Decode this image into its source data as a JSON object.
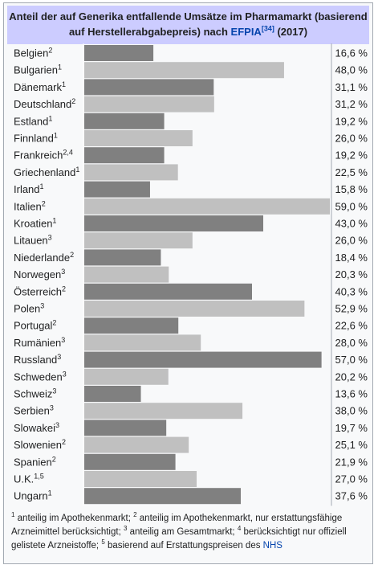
{
  "caption": {
    "line1": "Anteil der auf Generika entfallende Umsätze im Pharmamarkt (basierend",
    "line2_prefix": "auf Herstellerabgabepreis) nach ",
    "link": "EFPIA",
    "ref": "[34]",
    "suffix": " (2017)"
  },
  "chart_data": {
    "type": "bar",
    "orientation": "horizontal",
    "xlim": [
      0,
      59
    ],
    "categories": [
      "Belgien",
      "Bulgarien",
      "Dänemark",
      "Deutschland",
      "Estland",
      "Finnland",
      "Frankreich",
      "Griechenland",
      "Irland",
      "Italien",
      "Kroatien",
      "Litauen",
      "Niederlande",
      "Norwegen",
      "Österreich",
      "Polen",
      "Portugal",
      "Rumänien",
      "Russland",
      "Schweden",
      "Schweiz",
      "Serbien",
      "Slowakei",
      "Slowenien",
      "Spanien",
      "U.K.",
      "Ungarn"
    ],
    "category_notes": [
      "2",
      "1",
      "1",
      "2",
      "1",
      "1",
      "2,4",
      "1",
      "1",
      "2",
      "1",
      "3",
      "2",
      "3",
      "2",
      "3",
      "2",
      "3",
      "3",
      "3",
      "3",
      "3",
      "3",
      "2",
      "2",
      "1,5",
      "1"
    ],
    "values": [
      16.6,
      48.0,
      31.1,
      31.2,
      19.2,
      26.0,
      19.2,
      22.5,
      15.8,
      59.0,
      43.0,
      26.0,
      18.4,
      20.3,
      40.3,
      52.9,
      22.6,
      28.0,
      57.0,
      20.2,
      13.6,
      38.0,
      19.7,
      25.1,
      21.9,
      27.0,
      37.6
    ],
    "value_labels": [
      "16,6 %",
      "48,0 %",
      "31,1 %",
      "31,2 %",
      "19,2 %",
      "26,0 %",
      "19,2 %",
      "22,5 %",
      "15,8 %",
      "59,0 %",
      "43,0 %",
      "26,0 %",
      "18,4 %",
      "20,3 %",
      "40,3 %",
      "52,9 %",
      "22,6 %",
      "28,0 %",
      "57,0 %",
      "20,2 %",
      "13,6 %",
      "38,0 %",
      "19,7 %",
      "25,1 %",
      "21,9 %",
      "27,0 %",
      "37,6 %"
    ],
    "colors": {
      "dark": "#808080",
      "light": "#c0c0c0"
    }
  },
  "footnote": {
    "n1": "1",
    "t1": " anteilig im Apothekenmarkt; ",
    "n2": "2",
    "t2": " anteilig im Apothekenmarkt, nur erstattungsfähige Arzneimittel berücksichtigt; ",
    "n3": "3",
    "t3": " anteilig am Gesamtmarkt; ",
    "n4": "4",
    "t4": " berücksichtigt nur offiziell gelistete Arzneistoffe; ",
    "n5": "5",
    "t5": " basierend auf Erstattungspreisen des ",
    "link": "NHS"
  }
}
